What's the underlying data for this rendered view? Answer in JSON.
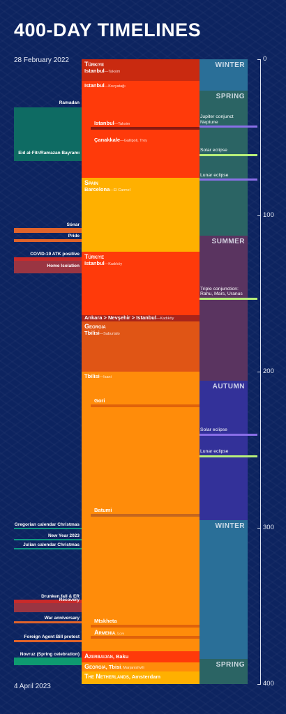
{
  "title": "400-DAY TIMELINES",
  "start_date": "28 February 2022",
  "end_date": "4 April 2023",
  "chart_data": {
    "type": "timeline",
    "title": "400-DAY TIMELINES",
    "y_axis": {
      "range": [
        0,
        400
      ],
      "ticks": [
        0,
        100,
        200,
        300,
        400
      ]
    },
    "locations": [
      {
        "country": "Türkiye",
        "city": "Istanbul",
        "place": "Taksim",
        "start": 0,
        "end": 14,
        "color": "#c92a10"
      },
      {
        "country": "",
        "city": "Istanbul",
        "place": "Kozyatağı",
        "start": 14,
        "end": 76,
        "color": "#ff3a0a"
      },
      {
        "country": "Spain",
        "city": "Barcelona",
        "place": "El Carmel",
        "start": 76,
        "end": 123,
        "color": "#ffb000"
      },
      {
        "country": "Türkiye",
        "city": "Istanbul",
        "place": "Kadıköy",
        "start": 123,
        "end": 164,
        "color": "#ff3a0a"
      },
      {
        "country": "",
        "city": "Ankara > Nevşehir > Istanbul",
        "place": "Kadıköy",
        "start": 164,
        "end": 168,
        "color": "#a8241a"
      },
      {
        "country": "Georgia",
        "city": "Tbilisi",
        "place": "Saburtalo",
        "start": 168,
        "end": 200,
        "color": "#e05515"
      },
      {
        "country": "",
        "city": "Tbilisi",
        "place": "Isani",
        "start": 200,
        "end": 379,
        "color": "#ff8c0a"
      },
      {
        "country": "Azerbaijan",
        "city": "Baku",
        "place": "",
        "start": 379,
        "end": 386,
        "color": "#ff3a0a"
      },
      {
        "country": "Georgia",
        "city": "Tbisi",
        "place": "Marjanishvili",
        "start": 386,
        "end": 392,
        "color": "#ff8c0a"
      },
      {
        "country": "The Netherlands",
        "city": "Amsterdam",
        "place": "",
        "start": 392,
        "end": 400,
        "color": "#ffb000"
      }
    ],
    "sub_locations": [
      {
        "city": "Istanbul",
        "place": "Taksim",
        "day": 44,
        "color": "#8b1a10"
      },
      {
        "city": "Çanakkale",
        "place": "Gallipoli, Troy",
        "day": 48,
        "color": ""
      },
      {
        "city": "Gori",
        "place": "",
        "day": 222,
        "color": "#e0620a"
      },
      {
        "city": "Batumi",
        "place": "",
        "day": 292,
        "color": "#c5661e"
      },
      {
        "city": "Mtskheta",
        "place": "",
        "day": 363,
        "color": "#e0620a"
      },
      {
        "city": "Armenia",
        "place": "Lori",
        "day": 370,
        "color": "#e0620a"
      }
    ],
    "seasons": [
      {
        "name": "WINTER",
        "start": 0,
        "end": 20,
        "color": "#2a6f98"
      },
      {
        "name": "SPRING",
        "start": 20,
        "end": 113,
        "color": "#2b6464"
      },
      {
        "name": "SUMMER",
        "start": 113,
        "end": 206,
        "color": "#5a3460"
      },
      {
        "name": "AUTUMN",
        "start": 206,
        "end": 295,
        "color": "#333199"
      },
      {
        "name": "WINTER",
        "start": 295,
        "end": 384,
        "color": "#2a6f98"
      },
      {
        "name": "SPRING",
        "start": 384,
        "end": 400,
        "color": "#2b6464"
      }
    ],
    "events": [
      {
        "label": "Ramadan",
        "start": 31,
        "end": 65,
        "color": "#0e6b63"
      },
      {
        "label": "Eid al-Fitr/Ramazan Bayramı",
        "start": 63,
        "end": 66,
        "color": "#0e6b63"
      },
      {
        "label": "Sónar",
        "start": 108,
        "end": 111,
        "color": "#e0632a"
      },
      {
        "label": "Pride",
        "start": 115,
        "end": 117,
        "color": "#e0632a"
      },
      {
        "label": "COVID-19 ATK positive",
        "start": 127,
        "end": 129,
        "color": "#c92a2a"
      },
      {
        "label": "Home Isolation",
        "start": 129,
        "end": 137,
        "color": "#9a3542"
      },
      {
        "label": "Gregorian calendar Christmas",
        "start": 300,
        "end": 301,
        "color": "#0e9a82"
      },
      {
        "label": "New Year 2023",
        "start": 307,
        "end": 308,
        "color": "#0e9a82"
      },
      {
        "label": "Julian calendar Christmas",
        "start": 313,
        "end": 314,
        "color": "#0e9a82"
      },
      {
        "label": "Drunken fall & ER",
        "start": 346,
        "end": 348,
        "color": "#c92a2a"
      },
      {
        "label": "Recovery",
        "start": 348,
        "end": 354,
        "color": "#9a3542"
      },
      {
        "label": "War anniversary",
        "start": 360,
        "end": 361,
        "color": "#e0632a"
      },
      {
        "label": "Foreign Agent Bill protest",
        "start": 372,
        "end": 373,
        "color": "#e0632a"
      },
      {
        "label": "Novruz (Spring celebration)",
        "start": 383,
        "end": 388,
        "color": "#0e9a70"
      }
    ],
    "astro_events": [
      {
        "label": "Jupiter conjunct Neptune",
        "day": 43,
        "color": "#8a6fe8"
      },
      {
        "label": "Solar eclipse",
        "day": 61,
        "color": "#b8f07a"
      },
      {
        "label": "Lunar eclipse",
        "day": 77,
        "color": "#8a6fe8"
      },
      {
        "label": "Triple conjunction: Rahu, Mars, Uranus",
        "day": 153,
        "color": "#b8f07a"
      },
      {
        "label": "Solar eclipse",
        "day": 240,
        "color": "#8a6fe8"
      },
      {
        "label": "Lunar eclipse",
        "day": 254,
        "color": "#b8f07a"
      }
    ]
  }
}
